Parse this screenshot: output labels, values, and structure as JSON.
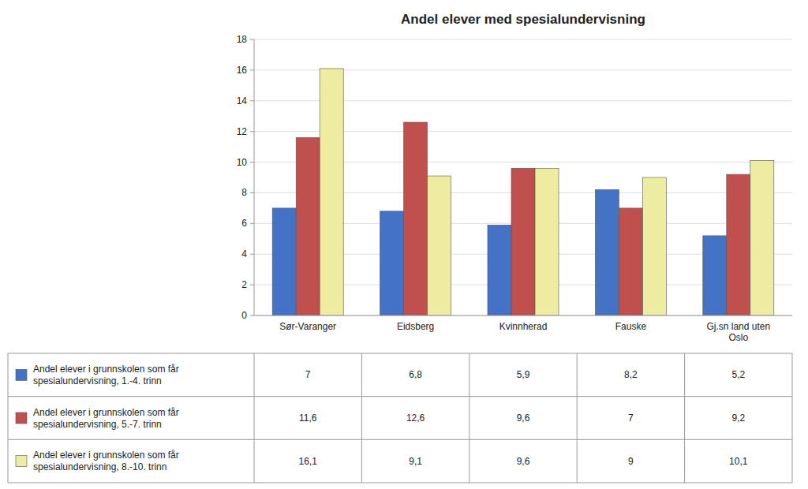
{
  "chart_data": {
    "type": "bar",
    "title": "Andel elever med spesialundervisning",
    "categories": [
      "Sør-Varanger",
      "Eidsberg",
      "Kvinnherad",
      "Fauske",
      "Gj.sn land uten\nOslo"
    ],
    "series": [
      {
        "name": "Andel elever i grunnskolen som får\nspesialundervisning, 1.-4. trinn",
        "color": "#4472C4",
        "values": [
          7.0,
          6.8,
          5.9,
          8.2,
          5.2
        ],
        "value_labels": [
          "7",
          "6,8",
          "5,9",
          "8,2",
          "5,2"
        ]
      },
      {
        "name": "Andel elever i grunnskolen som får\nspesialundervisning, 5.-7. trinn",
        "color": "#C0504D",
        "values": [
          11.6,
          12.6,
          9.6,
          7.0,
          9.2
        ],
        "value_labels": [
          "11,6",
          "12,6",
          "9,6",
          "7",
          "9,2"
        ]
      },
      {
        "name": "Andel elever i grunnskolen som får\nspesialundervisning, 8.-10. trinn",
        "color": "#EEECA1",
        "values": [
          16.1,
          9.1,
          9.6,
          9.0,
          10.1
        ],
        "value_labels": [
          "16,1",
          "9,1",
          "9,6",
          "9",
          "10,1"
        ]
      }
    ],
    "ylim": [
      0,
      18
    ],
    "yticks": [
      0,
      2,
      4,
      6,
      8,
      10,
      12,
      14,
      16,
      18
    ],
    "grid": true
  }
}
